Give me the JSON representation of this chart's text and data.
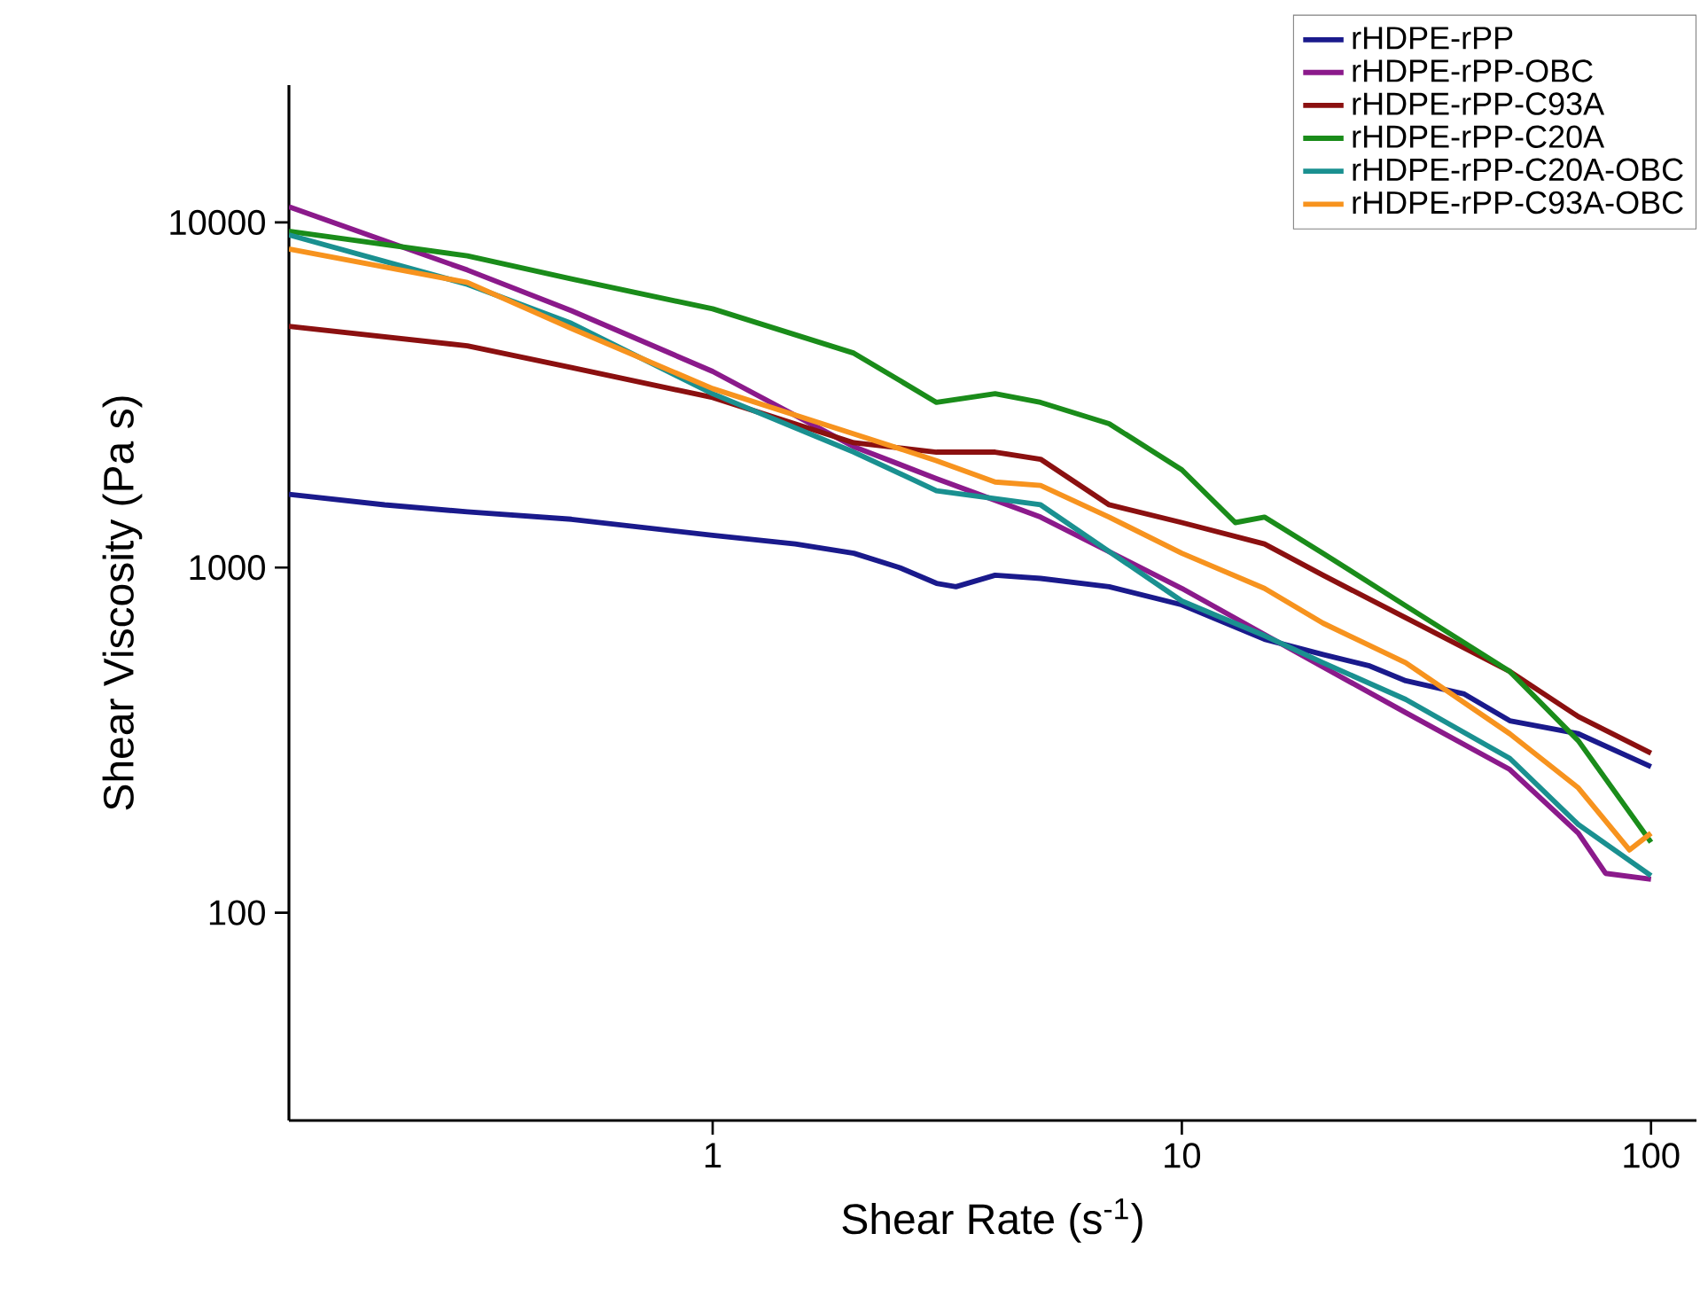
{
  "chart_data": {
    "type": "line",
    "xlabel": "Shear Rate (s$^{-1}$)",
    "ylabel": "Shear Viscosity (Pa s)",
    "log": "xy",
    "xlim": [
      0.125,
      125
    ],
    "ylim": [
      25,
      25000
    ],
    "xticks": [
      1,
      10,
      100
    ],
    "yticks": [
      100,
      1000,
      10000
    ],
    "legend": "top right",
    "grid": false,
    "marker": "none",
    "line_style": "solid",
    "series": [
      {
        "name": "rHDPE-rPP",
        "color": "#1a1a8c",
        "x": [
          0.125,
          0.2,
          0.3,
          0.5,
          1,
          1.5,
          2,
          2.5,
          3,
          3.3,
          4,
          5,
          7,
          10,
          15,
          20,
          25,
          30,
          40,
          50,
          70,
          100
        ],
        "values": [
          1630,
          1520,
          1450,
          1380,
          1240,
          1170,
          1100,
          1000,
          900,
          880,
          950,
          930,
          880,
          780,
          620,
          560,
          520,
          470,
          430,
          360,
          330,
          265
        ]
      },
      {
        "name": "rHDPE-rPP-OBC",
        "color": "#8b1a8b",
        "x": [
          0.125,
          0.3,
          0.5,
          1,
          2,
          3,
          5,
          10,
          15,
          20,
          30,
          50,
          70,
          80,
          100
        ],
        "values": [
          11100,
          7280,
          5550,
          3700,
          2240,
          1810,
          1400,
          870,
          640,
          515,
          380,
          260,
          170,
          130,
          125
        ]
      },
      {
        "name": "rHDPE-rPP-C93A",
        "color": "#8b1010",
        "x": [
          0.125,
          0.3,
          0.5,
          1,
          2,
          3,
          4,
          5,
          7,
          10,
          15,
          20,
          30,
          50,
          70,
          100
        ],
        "values": [
          5000,
          4390,
          3800,
          3110,
          2300,
          2160,
          2160,
          2060,
          1520,
          1350,
          1170,
          950,
          715,
          500,
          370,
          290
        ]
      },
      {
        "name": "rHDPE-rPP-C20A",
        "color": "#1a8c1a",
        "x": [
          0.125,
          0.3,
          0.5,
          1,
          2,
          3,
          4,
          5,
          7,
          10,
          13,
          15,
          20,
          30,
          50,
          70,
          100
        ],
        "values": [
          9430,
          8000,
          6860,
          5620,
          4180,
          3010,
          3190,
          3010,
          2610,
          1920,
          1350,
          1400,
          1100,
          775,
          500,
          315,
          160
        ]
      },
      {
        "name": "rHDPE-rPP-C20A-OBC",
        "color": "#1a9090",
        "x": [
          0.125,
          0.3,
          0.5,
          1,
          2,
          3,
          5,
          10,
          15,
          20,
          30,
          50,
          70,
          100
        ],
        "values": [
          9200,
          6620,
          5100,
          3190,
          2160,
          1670,
          1520,
          800,
          635,
          530,
          415,
          280,
          180,
          128
        ]
      },
      {
        "name": "rHDPE-rPP-C93A-OBC",
        "color": "#f7931e",
        "x": [
          0.125,
          0.3,
          0.5,
          1,
          2,
          3,
          4,
          5,
          7,
          10,
          15,
          20,
          30,
          50,
          70,
          90,
          100
        ],
        "values": [
          8380,
          6700,
          4930,
          3300,
          2440,
          2040,
          1770,
          1730,
          1400,
          1100,
          870,
          690,
          530,
          330,
          230,
          152,
          170
        ]
      }
    ]
  }
}
